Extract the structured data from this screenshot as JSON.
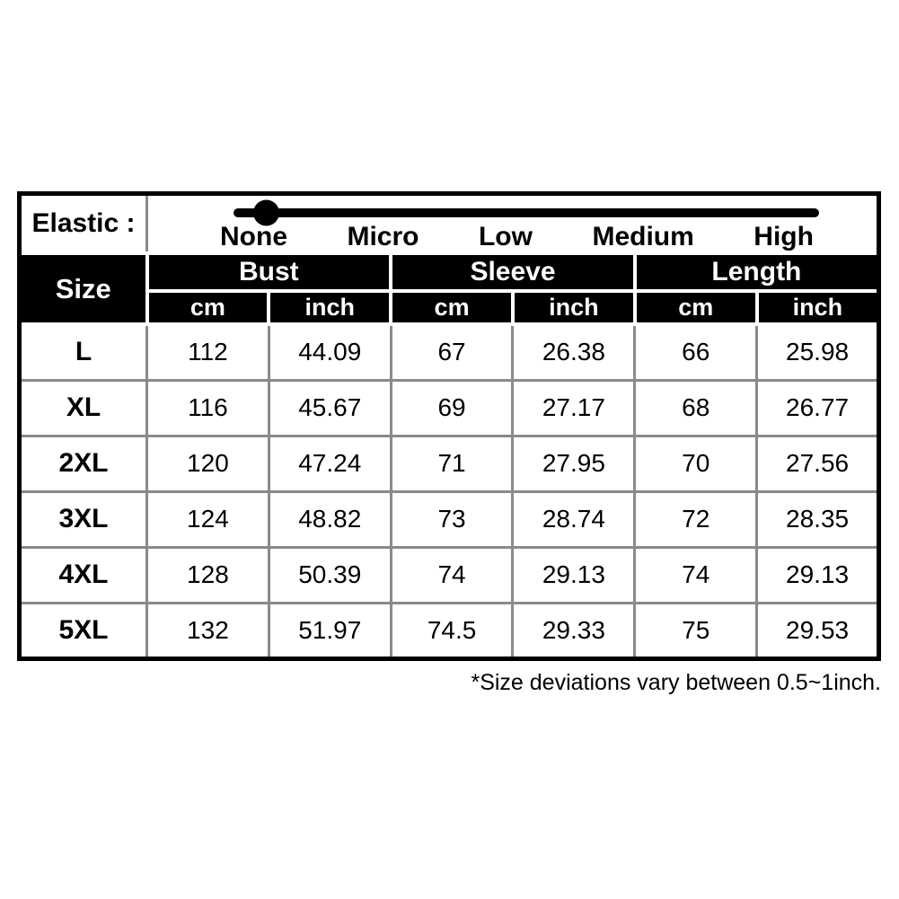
{
  "page": {
    "background": "#ffffff"
  },
  "elastic": {
    "label": "Elastic :",
    "options": [
      "None",
      "Micro",
      "Low",
      "Medium",
      "High"
    ],
    "selected": "None",
    "slider_color": "#000000"
  },
  "table": {
    "size_header": "Size",
    "groups": [
      {
        "label": "Bust"
      },
      {
        "label": "Sleeve"
      },
      {
        "label": "Length"
      }
    ],
    "units": [
      "cm",
      "inch",
      "cm",
      "inch",
      "cm",
      "inch"
    ],
    "rows": [
      {
        "size": "L",
        "values": [
          "112",
          "44.09",
          "67",
          "26.38",
          "66",
          "25.98"
        ]
      },
      {
        "size": "XL",
        "values": [
          "116",
          "45.67",
          "69",
          "27.17",
          "68",
          "26.77"
        ]
      },
      {
        "size": "2XL",
        "values": [
          "120",
          "47.24",
          "71",
          "27.95",
          "70",
          "27.56"
        ]
      },
      {
        "size": "3XL",
        "values": [
          "124",
          "48.82",
          "73",
          "28.74",
          "72",
          "28.35"
        ]
      },
      {
        "size": "4XL",
        "values": [
          "128",
          "50.39",
          "74",
          "29.13",
          "74",
          "29.13"
        ]
      },
      {
        "size": "5XL",
        "values": [
          "132",
          "51.97",
          "74.5",
          "29.33",
          "75",
          "29.53"
        ]
      }
    ],
    "colors": {
      "header_bg": "#000000",
      "header_text": "#ffffff",
      "grid_line": "#8a8a8a",
      "outer_border": "#000000"
    }
  },
  "footer": {
    "note": "*Size deviations vary between 0.5~1inch."
  }
}
